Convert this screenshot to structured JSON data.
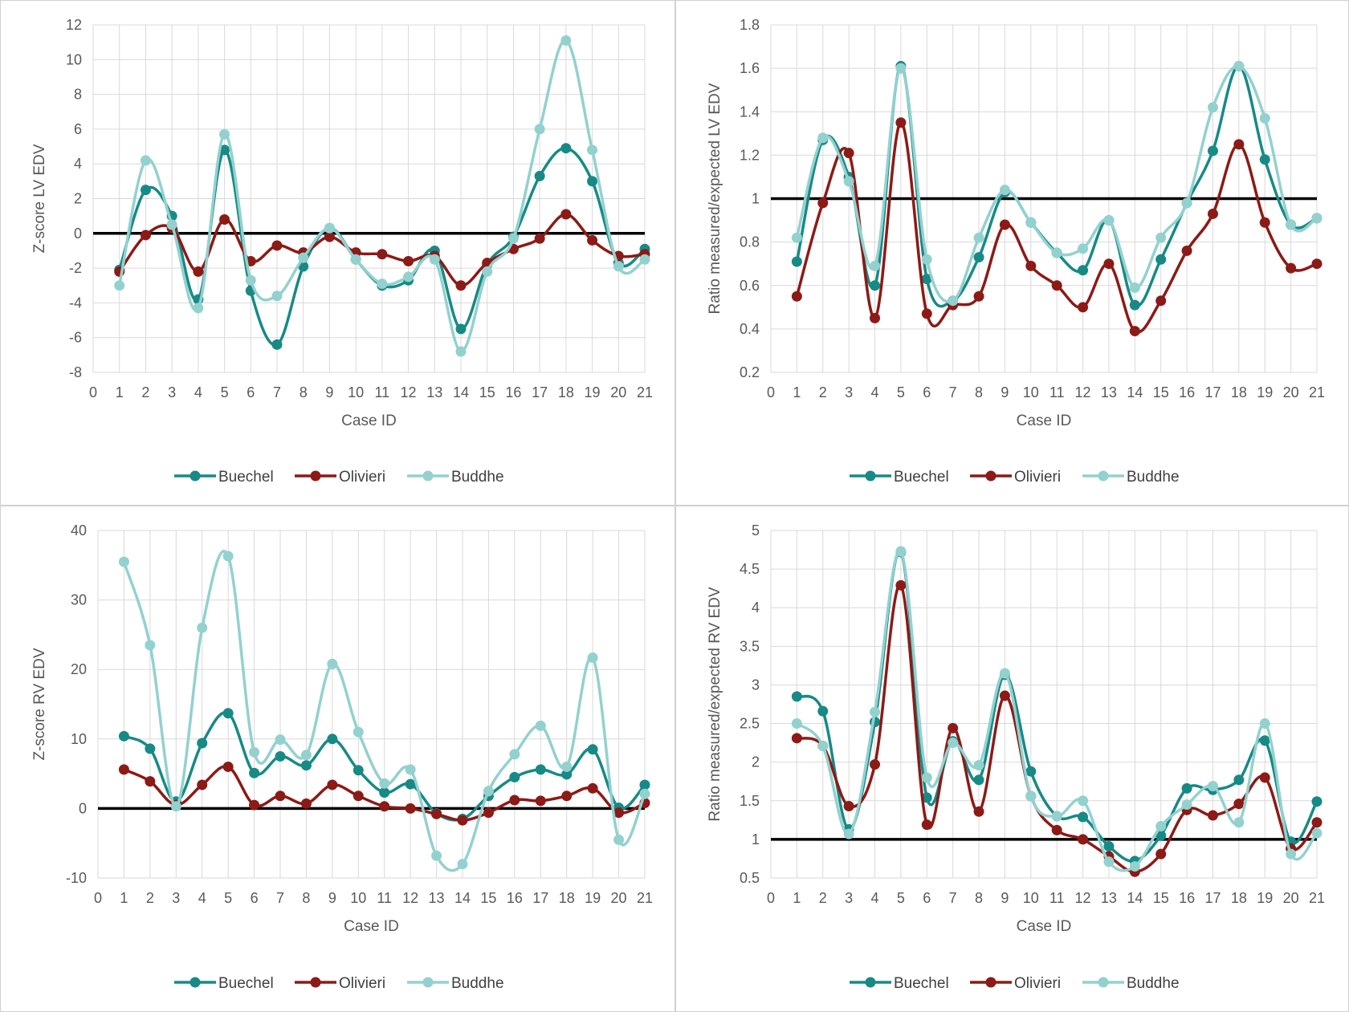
{
  "colors": {
    "buechel": "#178a86",
    "olivieri": "#8c1a16",
    "buddhe": "#93d1cf",
    "grid": "#d9d9d9",
    "reference_line": "#000000"
  },
  "chart_data": [
    {
      "type": "line",
      "ylabel": "Z-score LV EDV",
      "xlabel": "Case ID",
      "xlim": [
        0,
        21
      ],
      "ylim": [
        -8,
        12
      ],
      "ystep": 2,
      "ytick_decimals": 0,
      "reference_line": 0,
      "x": [
        1,
        2,
        3,
        4,
        5,
        6,
        7,
        8,
        9,
        10,
        11,
        12,
        13,
        14,
        15,
        16,
        17,
        18,
        19,
        20,
        21
      ],
      "legend_position": "bottom",
      "grid": true,
      "series": [
        {
          "name": "Buechel",
          "color_key": "buechel",
          "values": [
            -2.1,
            2.5,
            1.0,
            -3.8,
            4.8,
            -3.3,
            -6.4,
            -1.9,
            0.3,
            -1.5,
            -3.0,
            -2.7,
            -1.0,
            -5.5,
            -1.8,
            -0.2,
            3.3,
            4.9,
            3.0,
            -1.7,
            -0.9
          ]
        },
        {
          "name": "Olivieri",
          "color_key": "olivieri",
          "values": [
            -2.2,
            -0.1,
            0.3,
            -2.2,
            0.8,
            -1.6,
            -0.7,
            -1.1,
            -0.2,
            -1.1,
            -1.2,
            -1.6,
            -1.3,
            -3.0,
            -1.7,
            -0.9,
            -0.3,
            1.1,
            -0.4,
            -1.3,
            -1.2
          ]
        },
        {
          "name": "Buddhe",
          "color_key": "buddhe",
          "values": [
            -3.0,
            4.2,
            0.5,
            -4.3,
            5.7,
            -2.7,
            -3.6,
            -1.4,
            0.3,
            -1.5,
            -2.9,
            -2.5,
            -1.5,
            -6.8,
            -2.2,
            -0.3,
            6.0,
            11.1,
            4.8,
            -1.9,
            -1.5
          ]
        }
      ]
    },
    {
      "type": "line",
      "ylabel": "Ratio measured/expected LV EDV",
      "xlabel": "Case ID",
      "xlim": [
        0,
        21
      ],
      "ylim": [
        0.2,
        1.8
      ],
      "ystep": 0.2,
      "ytick_decimals": 1,
      "reference_line": 1,
      "x": [
        1,
        2,
        3,
        4,
        5,
        6,
        7,
        8,
        9,
        10,
        11,
        12,
        13,
        14,
        15,
        16,
        17,
        18,
        19,
        20,
        21
      ],
      "legend_position": "bottom",
      "grid": true,
      "series": [
        {
          "name": "Buechel",
          "color_key": "buechel",
          "values": [
            0.71,
            1.27,
            1.1,
            0.6,
            1.61,
            0.63,
            0.53,
            0.73,
            1.03,
            0.89,
            0.75,
            0.67,
            0.9,
            0.51,
            0.72,
            0.98,
            1.22,
            1.61,
            1.18,
            0.88,
            0.91
          ]
        },
        {
          "name": "Olivieri",
          "color_key": "olivieri",
          "values": [
            0.55,
            0.98,
            1.21,
            0.45,
            1.35,
            0.47,
            0.51,
            0.55,
            0.88,
            0.69,
            0.6,
            0.5,
            0.7,
            0.39,
            0.53,
            0.76,
            0.93,
            1.25,
            0.89,
            0.68,
            0.7
          ]
        },
        {
          "name": "Buddhe",
          "color_key": "buddhe",
          "values": [
            0.82,
            1.28,
            1.08,
            0.69,
            1.6,
            0.72,
            0.53,
            0.82,
            1.04,
            0.89,
            0.75,
            0.77,
            0.9,
            0.59,
            0.82,
            0.98,
            1.42,
            1.61,
            1.37,
            0.88,
            0.91
          ]
        }
      ]
    },
    {
      "type": "line",
      "ylabel": "Z-score RV EDV",
      "xlabel": "Case ID",
      "xlim": [
        0,
        21
      ],
      "ylim": [
        -10,
        40
      ],
      "ystep": 10,
      "ytick_decimals": 0,
      "reference_line": 0,
      "x": [
        1,
        2,
        3,
        4,
        5,
        6,
        7,
        8,
        9,
        10,
        11,
        12,
        13,
        14,
        15,
        16,
        17,
        18,
        19,
        20,
        21
      ],
      "legend_position": "bottom",
      "grid": true,
      "series": [
        {
          "name": "Buechel",
          "color_key": "buechel",
          "values": [
            10.4,
            8.6,
            1.0,
            9.4,
            13.7,
            5.1,
            7.5,
            6.2,
            10.0,
            5.5,
            2.3,
            3.5,
            -0.7,
            -1.5,
            1.8,
            4.5,
            5.6,
            4.9,
            8.5,
            0.1,
            3.4
          ]
        },
        {
          "name": "Olivieri",
          "color_key": "olivieri",
          "values": [
            5.6,
            3.9,
            0.5,
            3.4,
            6.0,
            0.5,
            1.8,
            0.7,
            3.4,
            1.8,
            0.3,
            0.0,
            -0.8,
            -1.7,
            -0.6,
            1.2,
            1.1,
            1.8,
            2.9,
            -0.6,
            0.8
          ]
        },
        {
          "name": "Buddhe",
          "color_key": "buddhe",
          "values": [
            35.5,
            23.5,
            0.3,
            26.0,
            36.3,
            8.1,
            9.9,
            7.7,
            20.8,
            11.0,
            3.6,
            5.6,
            -6.8,
            -8.0,
            2.5,
            7.8,
            11.9,
            6.0,
            21.7,
            -4.5,
            2.1
          ]
        }
      ]
    },
    {
      "type": "line",
      "ylabel": "Ratio measured/expected RV EDV",
      "xlabel": "Case ID",
      "xlim": [
        0,
        21
      ],
      "ylim": [
        0.5,
        5
      ],
      "ystep": 0.5,
      "ytick_decimals": 1,
      "reference_line": 1,
      "x": [
        1,
        2,
        3,
        4,
        5,
        6,
        7,
        8,
        9,
        10,
        11,
        12,
        13,
        14,
        15,
        16,
        17,
        18,
        19,
        20,
        21
      ],
      "legend_position": "bottom",
      "grid": true,
      "series": [
        {
          "name": "Buechel",
          "color_key": "buechel",
          "values": [
            2.85,
            2.66,
            1.13,
            2.52,
            4.72,
            1.54,
            2.27,
            1.77,
            3.13,
            1.88,
            1.3,
            1.29,
            0.91,
            0.72,
            1.05,
            1.66,
            1.64,
            1.77,
            2.28,
            0.97,
            1.49
          ]
        },
        {
          "name": "Olivieri",
          "color_key": "olivieri",
          "values": [
            2.31,
            2.21,
            1.43,
            1.97,
            4.29,
            1.19,
            2.44,
            1.36,
            2.86,
            1.56,
            1.12,
            1.0,
            0.78,
            0.58,
            0.81,
            1.38,
            1.31,
            1.46,
            1.8,
            0.88,
            1.22
          ]
        },
        {
          "name": "Buddhe",
          "color_key": "buddhe",
          "values": [
            2.5,
            2.21,
            1.07,
            2.65,
            4.73,
            1.8,
            2.25,
            1.96,
            3.15,
            1.56,
            1.3,
            1.5,
            0.71,
            0.65,
            1.17,
            1.45,
            1.69,
            1.22,
            2.5,
            0.81,
            1.08
          ]
        }
      ]
    }
  ]
}
